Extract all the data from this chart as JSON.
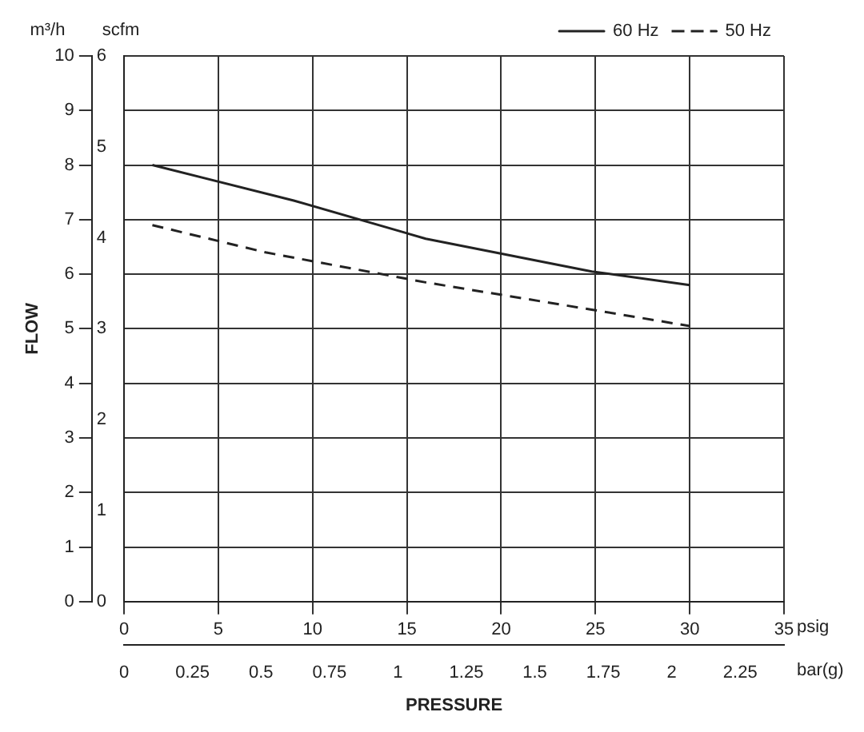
{
  "chart_data": {
    "type": "line",
    "xlabel": "PRESSURE",
    "ylabel": "FLOW",
    "annotations": [
      "m³/h",
      "scfm",
      "psig",
      "bar(g)"
    ],
    "series": [
      {
        "name": "60 Hz",
        "color": "#222222",
        "line_style": "solid",
        "x": [
          1.5,
          9,
          16,
          24.8,
          30
        ],
        "values": [
          8.0,
          7.35,
          6.65,
          6.05,
          5.8
        ]
      },
      {
        "name": "50 Hz",
        "color": "#222222",
        "line_style": "dashed",
        "x": [
          1.5,
          7.5,
          16,
          24.8,
          30
        ],
        "values": [
          6.9,
          6.4,
          5.85,
          5.35,
          5.05
        ]
      }
    ],
    "xlim": [
      0,
      35
    ],
    "xticks": [
      0,
      5,
      10,
      15,
      20,
      25,
      30,
      35
    ],
    "x2lim": [
      0,
      2.41
    ],
    "x2ticks": [
      0,
      0.25,
      0.5,
      0.75,
      1,
      1.25,
      1.5,
      1.75,
      2,
      2.25
    ],
    "ylim": [
      0,
      10
    ],
    "yticks": [
      0,
      1,
      2,
      3,
      4,
      5,
      6,
      7,
      8,
      9,
      10
    ],
    "y2lim": [
      0,
      6
    ],
    "y2ticks": [
      0,
      1,
      2,
      3,
      4,
      5,
      6
    ],
    "grid": true,
    "legend": "top right",
    "marker": "none"
  }
}
